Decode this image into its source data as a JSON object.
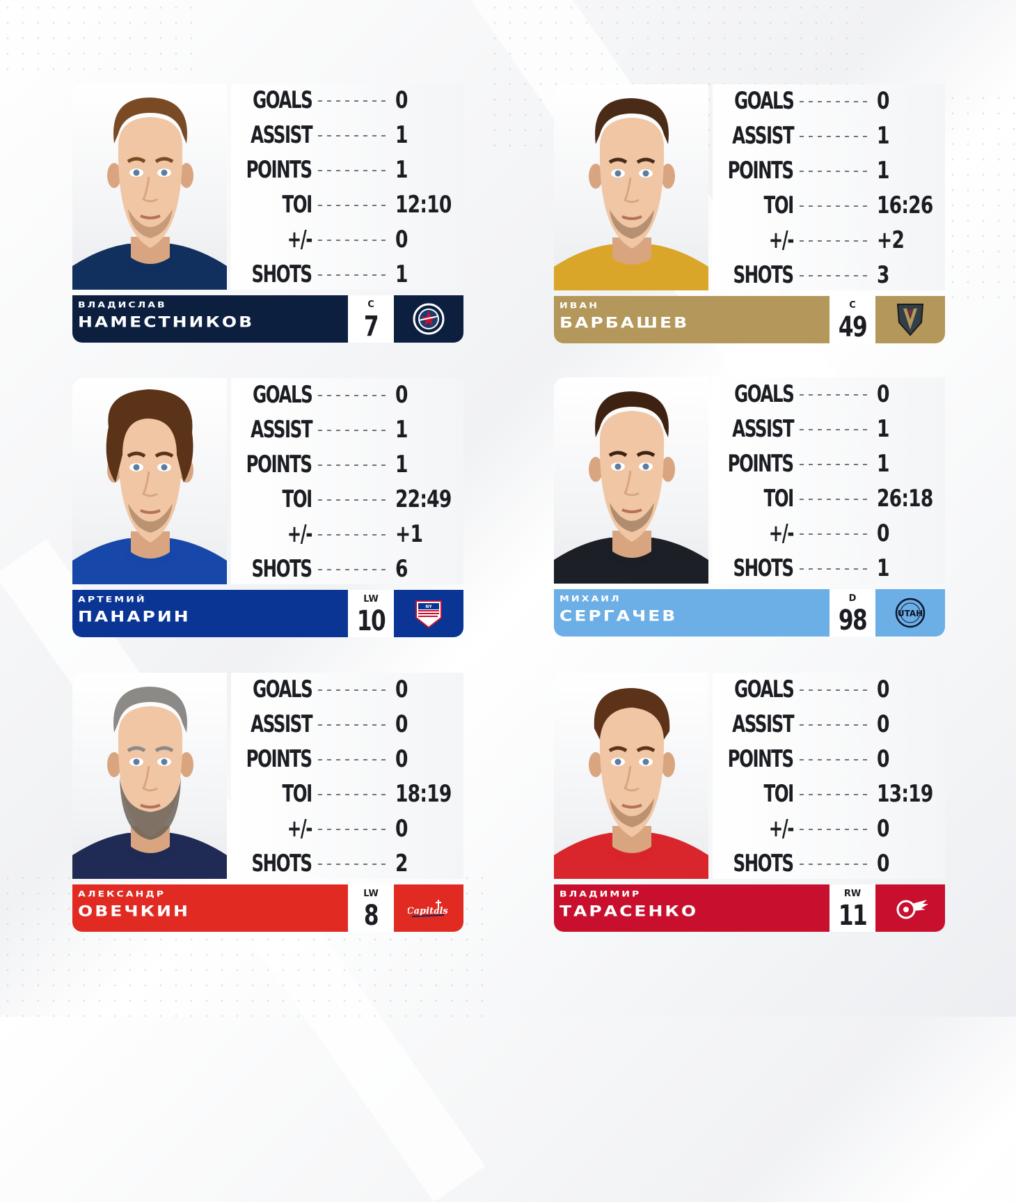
{
  "stat_labels": [
    "GOALS",
    "ASSIST",
    "POINTS",
    "TOI",
    "+/-",
    "SHOTS"
  ],
  "players": [
    {
      "first_name": "Владислав",
      "last_name": "Наместников",
      "position": "C",
      "number": "7",
      "stats": [
        "0",
        "1",
        "1",
        "12:10",
        "0",
        "1"
      ],
      "team_color": "#0c1f3f",
      "team_logo": "jets-logo",
      "jersey_color": "#12305e"
    },
    {
      "first_name": "Иван",
      "last_name": "Барбашев",
      "position": "C",
      "number": "49",
      "stats": [
        "0",
        "1",
        "1",
        "16:26",
        "+2",
        "3"
      ],
      "team_color": "#b4975a",
      "team_logo": "golden-knights-logo",
      "jersey_color": "#d9a62a"
    },
    {
      "first_name": "Артемий",
      "last_name": "Панарин",
      "position": "LW",
      "number": "10",
      "stats": [
        "0",
        "1",
        "1",
        "22:49",
        "+1",
        "6"
      ],
      "team_color": "#0a3594",
      "team_logo": "rangers-logo",
      "jersey_color": "#1747a8"
    },
    {
      "first_name": "Михаил",
      "last_name": "Сергачев",
      "position": "D",
      "number": "98",
      "stats": [
        "0",
        "1",
        "1",
        "26:18",
        "0",
        "1"
      ],
      "team_color": "#6caee6",
      "team_logo": "utah-logo",
      "jersey_color": "#1c1f26",
      "team_logo_text": "UTAH"
    },
    {
      "first_name": "Александр",
      "last_name": "Овечкин",
      "position": "LW",
      "number": "8",
      "stats": [
        "0",
        "0",
        "0",
        "18:19",
        "0",
        "2"
      ],
      "team_color": "#e02a22",
      "team_logo": "capitals-logo",
      "jersey_color": "#1f2b54",
      "team_logo_text": "Capitals"
    },
    {
      "first_name": "Владимир",
      "last_name": "Тарасенко",
      "position": "RW",
      "number": "11",
      "stats": [
        "0",
        "0",
        "0",
        "13:19",
        "0",
        "0"
      ],
      "team_color": "#c8102e",
      "team_logo": "red-wings-logo",
      "jersey_color": "#d8262c"
    }
  ]
}
